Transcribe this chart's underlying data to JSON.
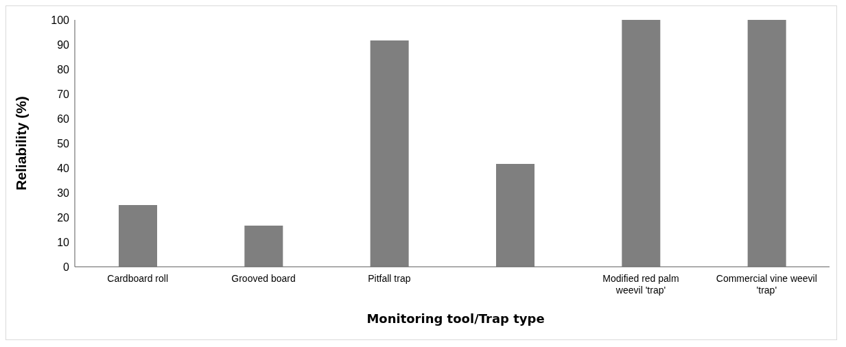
{
  "chart_data": {
    "type": "bar",
    "xlabel": "Monitoring tool/Trap type",
    "ylabel": "Reliability  (%)",
    "categories": [
      "Cardboard roll",
      "Grooved board",
      "Pitfall trap",
      null,
      "Modified red palm weevil 'trap'",
      "Commercial vine weevil 'trap'"
    ],
    "values": [
      25,
      16.7,
      91.7,
      41.7,
      100,
      100
    ],
    "color": "#7f7f7f",
    "ylim": [
      0,
      100
    ],
    "yticks": [
      0,
      10,
      20,
      30,
      40,
      50,
      60,
      70,
      80,
      90,
      100
    ],
    "grid": false,
    "legend": false
  }
}
